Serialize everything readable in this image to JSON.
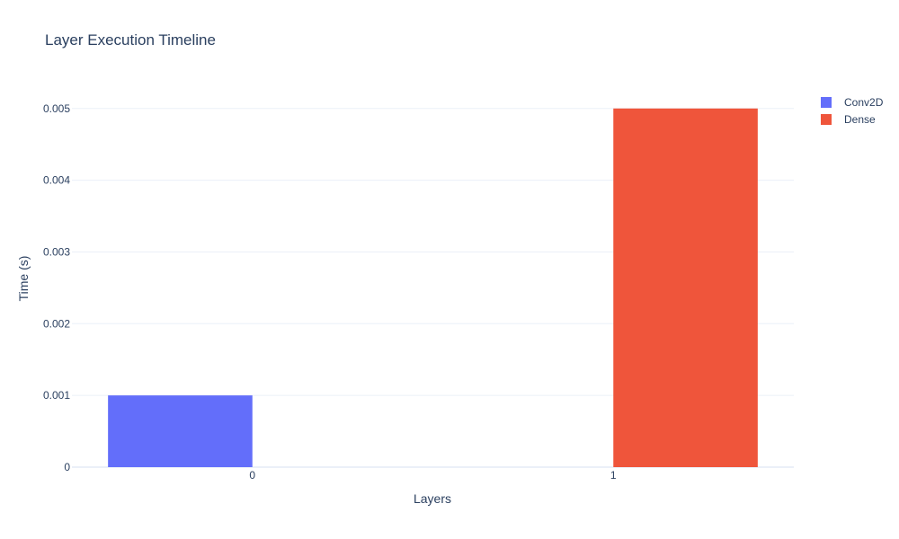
{
  "chart_data": {
    "type": "bar",
    "title": "Layer Execution Timeline",
    "xlabel": "Layers",
    "ylabel": "Time (s)",
    "categories": [
      "0",
      "1"
    ],
    "series": [
      {
        "name": "Conv2D",
        "color": "#636efa",
        "values": [
          0.001,
          null
        ]
      },
      {
        "name": "Dense",
        "color": "#ef553b",
        "values": [
          null,
          0.005
        ]
      }
    ],
    "ylim": [
      0,
      0.00526
    ],
    "yticks": [
      0,
      0.001,
      0.002,
      0.003,
      0.004,
      0.005
    ],
    "ytick_labels": [
      "0",
      "0.001",
      "0.002",
      "0.003",
      "0.004",
      "0.005"
    ],
    "grid": true,
    "legend_position": "top-right"
  }
}
